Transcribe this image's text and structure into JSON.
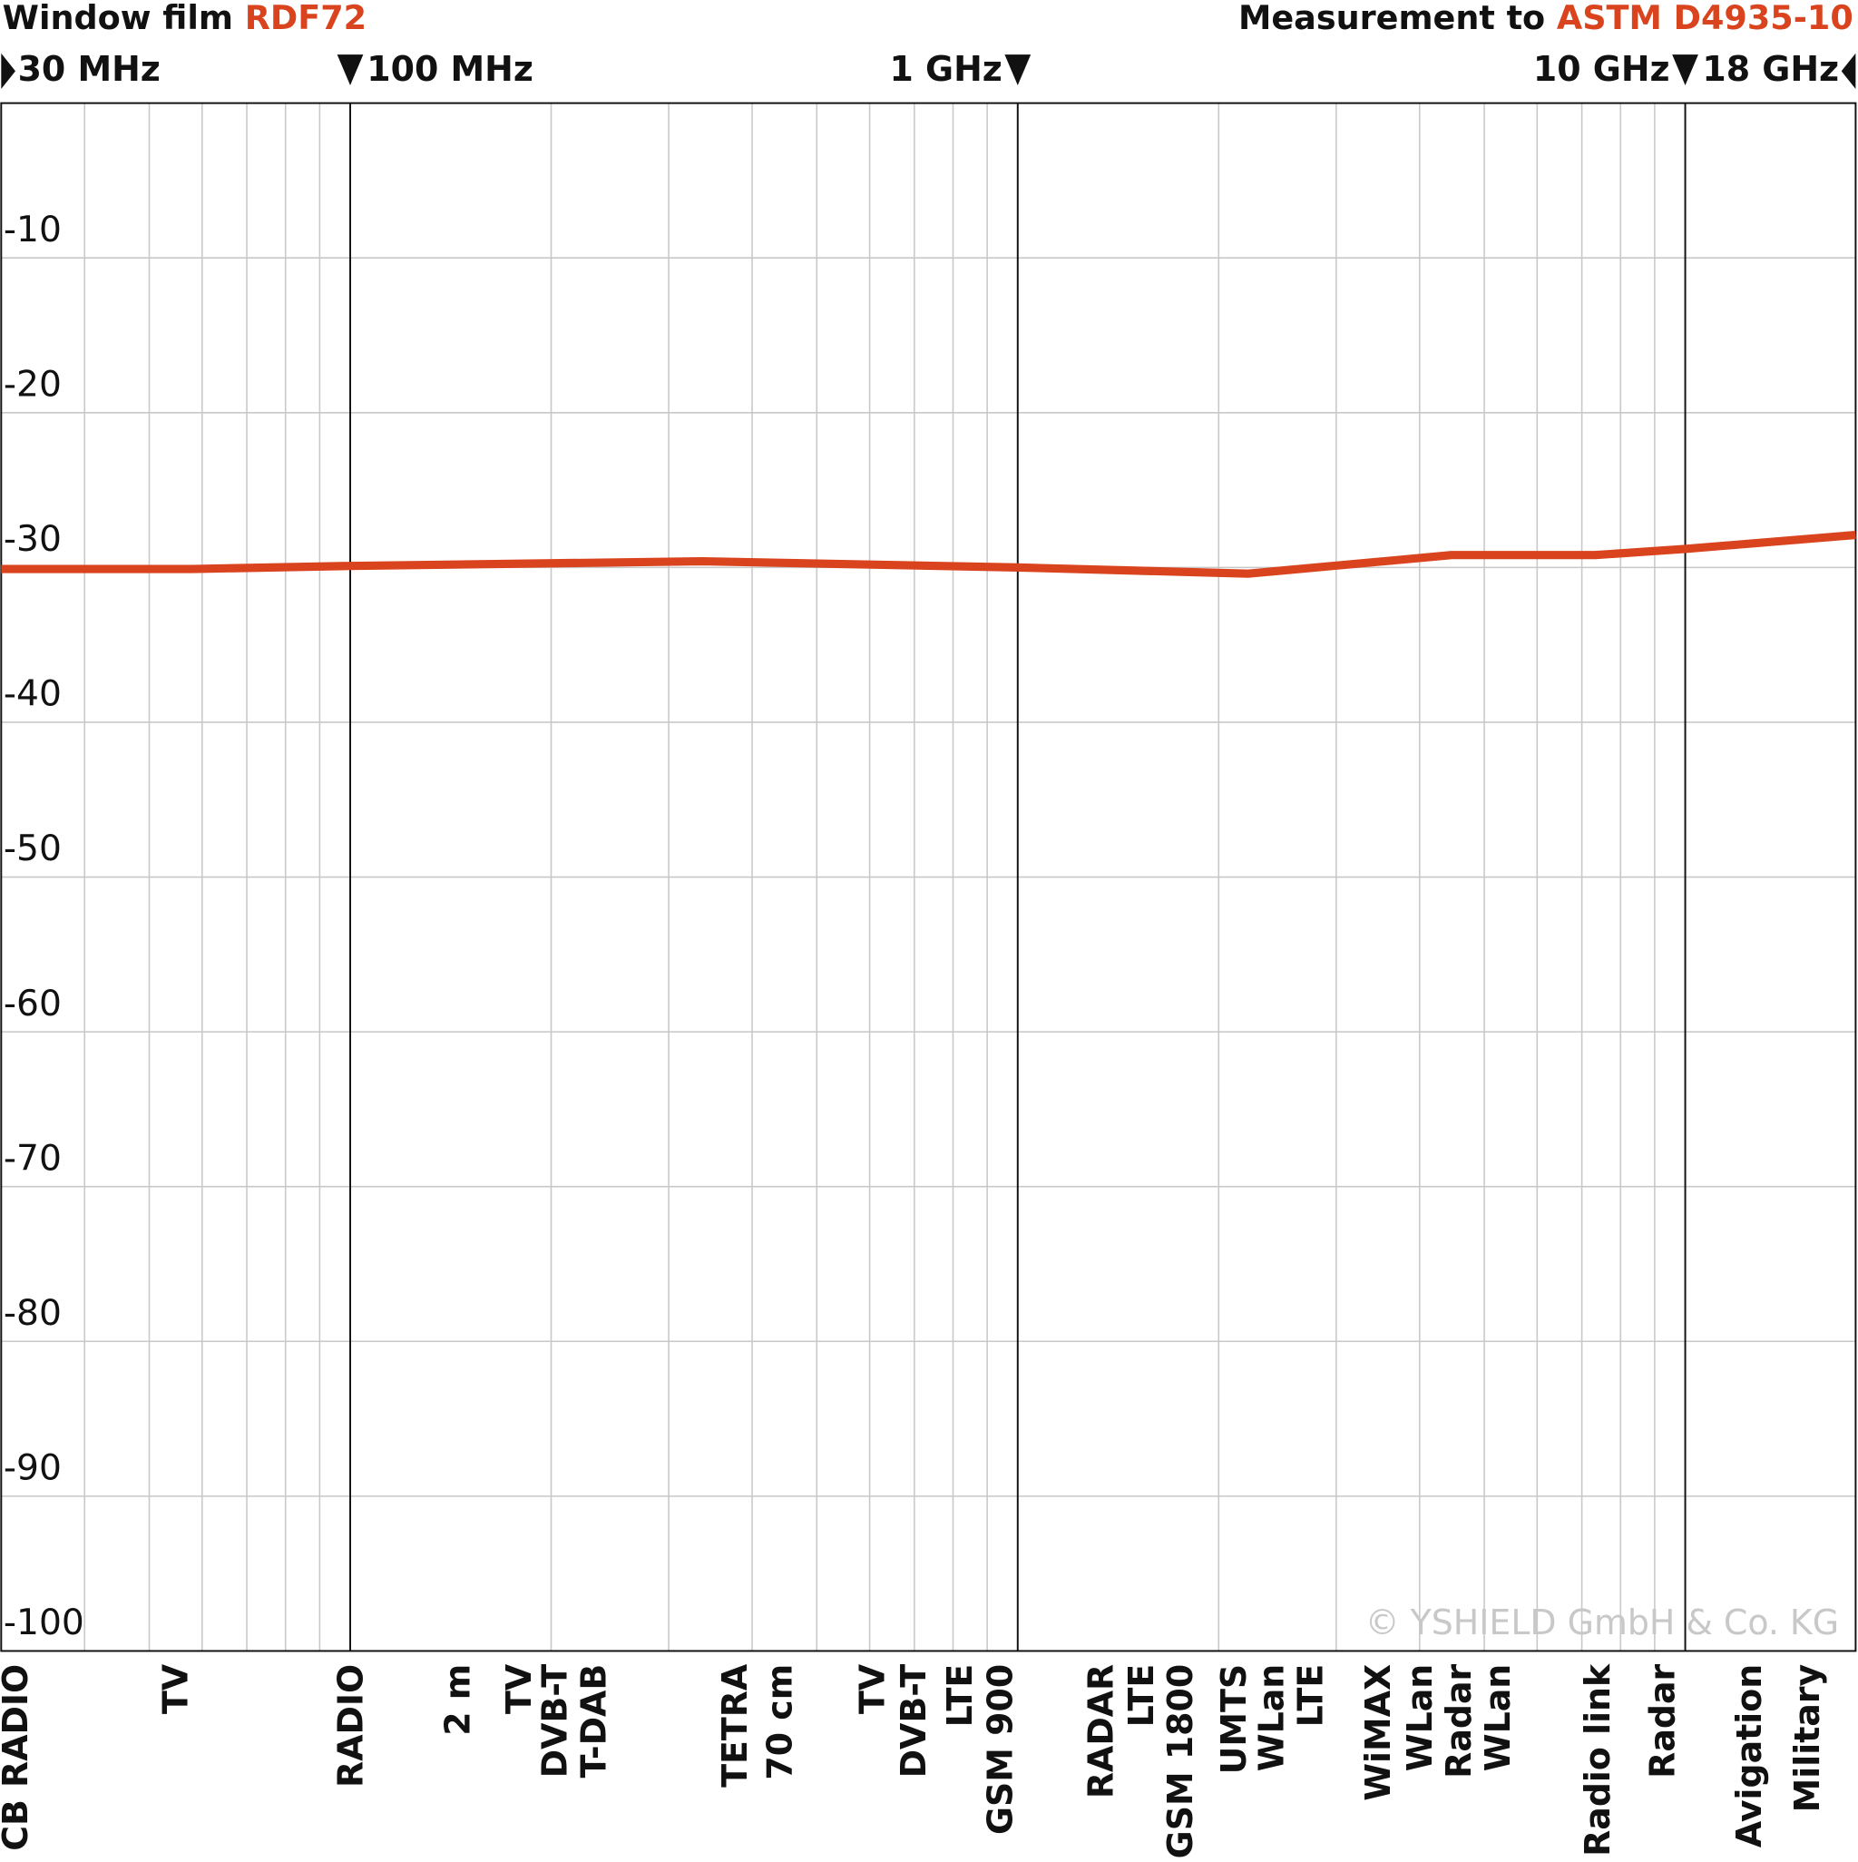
{
  "chart_data": {
    "type": "line",
    "title_left": {
      "text": "Window film ",
      "highlight": "RDF72"
    },
    "title_right": {
      "text": "Measurement to ",
      "highlight": "ASTM D4935-10"
    },
    "x": [
      30,
      58,
      100,
      338,
      1000,
      2214,
      4465,
      7330,
      10000,
      18000
    ],
    "series": [
      {
        "name": "RDF72",
        "color": "#d9431e",
        "values": [
          -30.1,
          -30.1,
          -29.9,
          -29.6,
          -30.0,
          -30.4,
          -29.2,
          -29.2,
          -28.8,
          -27.9
        ]
      }
    ],
    "xlim": [
      30,
      18000
    ],
    "xlog": true,
    "xticks": [
      {
        "value": 30,
        "label": "30 MHz"
      },
      {
        "value": 100,
        "label": "100 MHz"
      },
      {
        "value": 1000,
        "label": "1 GHz"
      },
      {
        "value": 10000,
        "label": "10 GHz"
      },
      {
        "value": 18000,
        "label": "18 GHz"
      }
    ],
    "xminor": [
      40,
      50,
      60,
      70,
      80,
      90,
      200,
      300,
      400,
      500,
      600,
      700,
      800,
      900,
      2000,
      3000,
      4000,
      5000,
      6000,
      7000,
      8000,
      9000
    ],
    "ylim": [
      -100,
      0
    ],
    "yticks": [
      -10,
      -20,
      -30,
      -40,
      -50,
      -60,
      -70,
      -80,
      -90,
      -100
    ],
    "grid": true,
    "bands": [
      "CB RADIO",
      "TV",
      "RADIO",
      "2 m",
      "TV",
      "DVB-T",
      "T-DAB",
      "TETRA",
      "70 cm",
      "TV",
      "DVB-T",
      "LTE",
      "GSM 900",
      "RADAR",
      "LTE",
      "GSM 1800",
      "UMTS",
      "WLan",
      "LTE",
      "WiMAX",
      "WLan",
      "Radar",
      "WLan",
      "Radio link",
      "Radar",
      "Avigation",
      "Military"
    ],
    "watermark": "© YSHIELD GmbH & Co. KG"
  }
}
